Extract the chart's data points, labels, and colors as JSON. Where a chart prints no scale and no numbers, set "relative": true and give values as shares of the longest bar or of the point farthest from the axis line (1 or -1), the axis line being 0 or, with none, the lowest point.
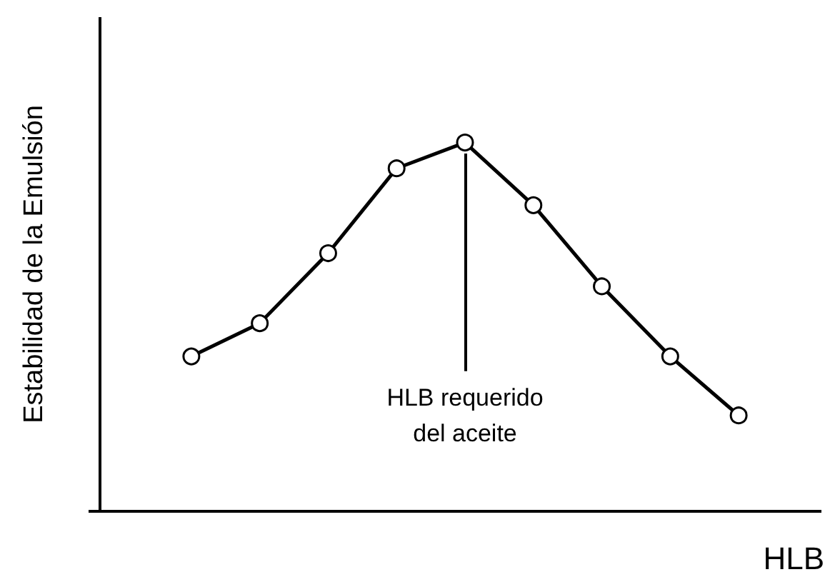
{
  "chart_data": {
    "type": "line",
    "relative": true,
    "xlabel": "HLB",
    "ylabel": "Estabilidad de la Emulsión",
    "categories": [
      null,
      null,
      null,
      null,
      null,
      null,
      null,
      null,
      null
    ],
    "series": [
      {
        "color": "#000000",
        "values": [
          0.42,
          0.51,
          0.7,
          0.93,
          1,
          0.83,
          0.61,
          0.42,
          0.26
        ]
      }
    ],
    "marker": "circle",
    "line_style": "solid",
    "annotations": [
      "HLB requerido\ndel aceite"
    ]
  }
}
